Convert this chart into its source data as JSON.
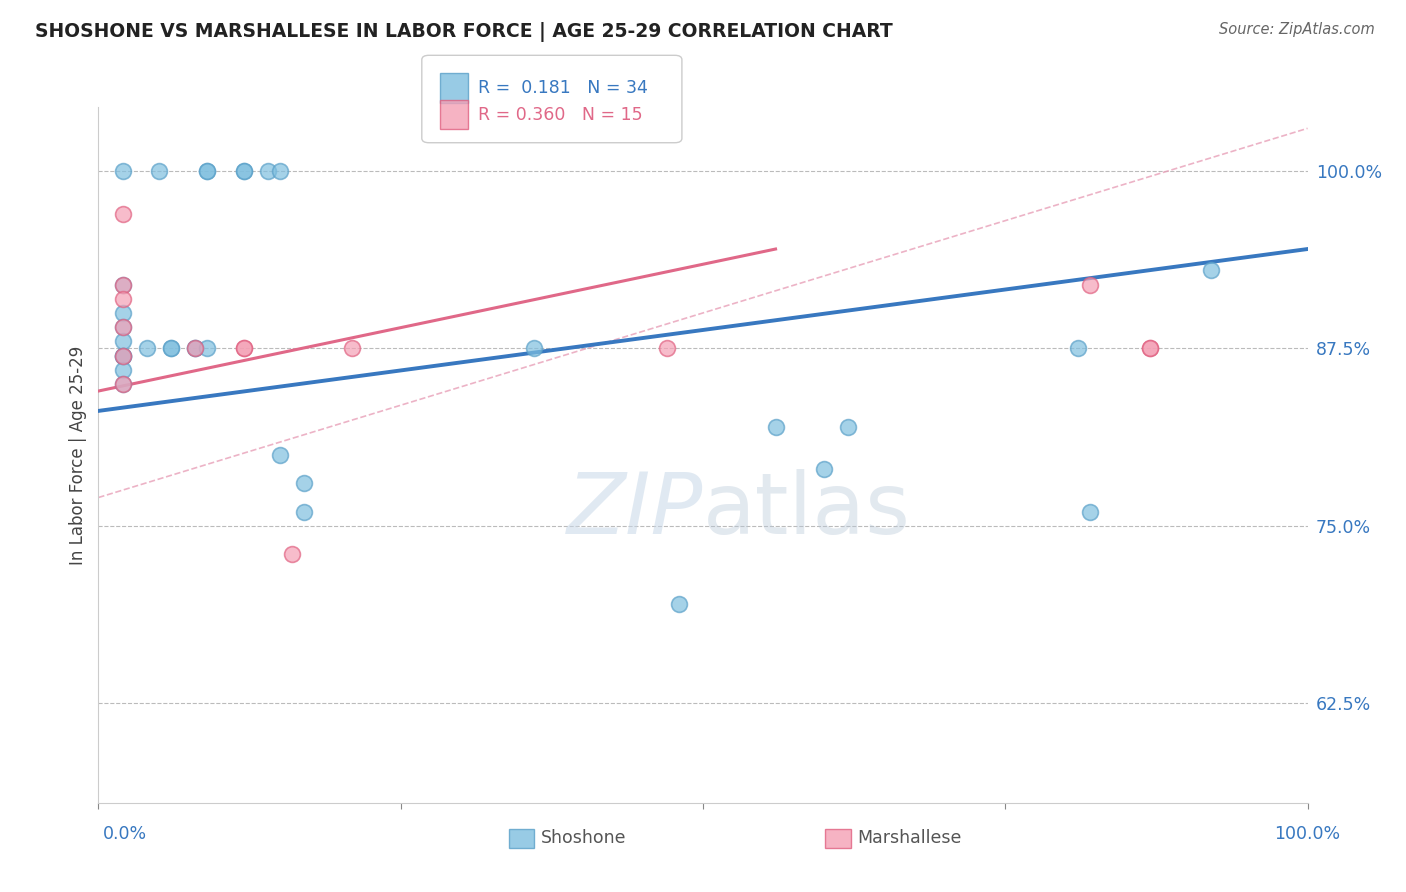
{
  "title": "SHOSHONE VS MARSHALLESE IN LABOR FORCE | AGE 25-29 CORRELATION CHART",
  "source": "Source: ZipAtlas.com",
  "ylabel": "In Labor Force | Age 25-29",
  "watermark_zip": "ZIP",
  "watermark_atlas": "atlas",
  "shoshone_R": "0.181",
  "shoshone_N": "34",
  "marshallese_R": "0.360",
  "marshallese_N": "15",
  "shoshone_color": "#7fbfdf",
  "shoshone_edge_color": "#5aa0c8",
  "marshallese_color": "#f4a0b5",
  "marshallese_edge_color": "#e06080",
  "shoshone_line_color": "#3878c0",
  "marshallese_line_color": "#e06888",
  "dashed_line_color": "#e8a0b8",
  "ytick_labels": [
    "62.5%",
    "75.0%",
    "87.5%",
    "100.0%"
  ],
  "ytick_values": [
    0.625,
    0.75,
    0.875,
    1.0
  ],
  "xlim": [
    0.0,
    1.0
  ],
  "ylim": [
    0.555,
    1.045
  ],
  "shoshone_x": [
    0.02,
    0.05,
    0.09,
    0.09,
    0.12,
    0.12,
    0.14,
    0.15,
    0.02,
    0.02,
    0.02,
    0.02,
    0.02,
    0.02,
    0.02,
    0.02,
    0.02,
    0.04,
    0.06,
    0.06,
    0.08,
    0.08,
    0.09,
    0.15,
    0.17,
    0.17,
    0.36,
    0.48,
    0.56,
    0.6,
    0.62,
    0.81,
    0.82,
    0.92
  ],
  "shoshone_y": [
    1.0,
    1.0,
    1.0,
    1.0,
    1.0,
    1.0,
    1.0,
    1.0,
    0.92,
    0.9,
    0.89,
    0.88,
    0.87,
    0.87,
    0.87,
    0.86,
    0.85,
    0.875,
    0.875,
    0.875,
    0.875,
    0.875,
    0.875,
    0.8,
    0.78,
    0.76,
    0.875,
    0.695,
    0.82,
    0.79,
    0.82,
    0.875,
    0.76,
    0.93
  ],
  "marshallese_x": [
    0.02,
    0.02,
    0.02,
    0.02,
    0.02,
    0.02,
    0.08,
    0.12,
    0.12,
    0.16,
    0.21,
    0.47,
    0.82,
    0.87,
    0.87
  ],
  "marshallese_y": [
    0.97,
    0.92,
    0.91,
    0.89,
    0.87,
    0.85,
    0.875,
    0.875,
    0.875,
    0.73,
    0.875,
    0.875,
    0.92,
    0.875,
    0.875
  ],
  "shoshone_line_x": [
    0.0,
    1.0
  ],
  "shoshone_line_y": [
    0.831,
    0.945
  ],
  "marshallese_line_x": [
    0.0,
    0.56
  ],
  "marshallese_line_y": [
    0.845,
    0.945
  ],
  "dashed_line_x": [
    0.0,
    1.0
  ],
  "dashed_line_y": [
    0.77,
    1.03
  ]
}
